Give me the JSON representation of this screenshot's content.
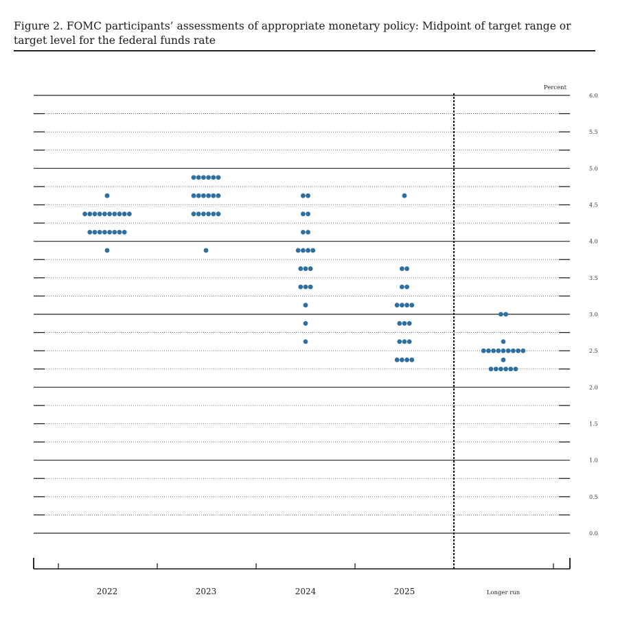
{
  "figure": {
    "title": "Figure 2.  FOMC participants’ assessments of appropriate monetary policy:  Midpoint of target range or target level for the federal funds rate"
  },
  "chart_data": {
    "type": "scatter",
    "title": "Figure 2.  FOMC participants’ assessments of appropriate monetary policy:  Midpoint of target range or target level for the federal funds rate",
    "ylabel": "Percent",
    "ylim": [
      0,
      6
    ],
    "yticks": [
      "0.0",
      "0.5",
      "1.0",
      "1.5",
      "2.0",
      "2.5",
      "3.0",
      "3.5",
      "4.0",
      "4.5",
      "5.0",
      "5.5",
      "6.0"
    ],
    "categories": [
      "2022",
      "2023",
      "2024",
      "2025",
      "Longer run"
    ],
    "dot_color": "#2e6fa0",
    "dots": [
      {
        "category": "2022",
        "y": 4.625,
        "count": 1
      },
      {
        "category": "2022",
        "y": 4.375,
        "count": 10
      },
      {
        "category": "2022",
        "y": 4.125,
        "count": 8
      },
      {
        "category": "2022",
        "y": 3.875,
        "count": 1
      },
      {
        "category": "2023",
        "y": 4.875,
        "count": 6
      },
      {
        "category": "2023",
        "y": 4.625,
        "count": 6
      },
      {
        "category": "2023",
        "y": 4.375,
        "count": 6
      },
      {
        "category": "2023",
        "y": 3.875,
        "count": 1
      },
      {
        "category": "2024",
        "y": 4.625,
        "count": 2
      },
      {
        "category": "2024",
        "y": 4.375,
        "count": 2
      },
      {
        "category": "2024",
        "y": 4.125,
        "count": 2
      },
      {
        "category": "2024",
        "y": 3.875,
        "count": 4
      },
      {
        "category": "2024",
        "y": 3.625,
        "count": 3
      },
      {
        "category": "2024",
        "y": 3.375,
        "count": 3
      },
      {
        "category": "2024",
        "y": 3.125,
        "count": 1
      },
      {
        "category": "2024",
        "y": 2.875,
        "count": 1
      },
      {
        "category": "2024",
        "y": 2.625,
        "count": 1
      },
      {
        "category": "2025",
        "y": 4.625,
        "count": 1
      },
      {
        "category": "2025",
        "y": 3.625,
        "count": 2
      },
      {
        "category": "2025",
        "y": 3.375,
        "count": 2
      },
      {
        "category": "2025",
        "y": 3.125,
        "count": 4
      },
      {
        "category": "2025",
        "y": 2.875,
        "count": 3
      },
      {
        "category": "2025",
        "y": 2.625,
        "count": 3
      },
      {
        "category": "2025",
        "y": 2.375,
        "count": 4
      },
      {
        "category": "Longer run",
        "y": 3.0,
        "count": 2
      },
      {
        "category": "Longer run",
        "y": 2.625,
        "count": 1
      },
      {
        "category": "Longer run",
        "y": 2.5,
        "count": 9
      },
      {
        "category": "Longer run",
        "y": 2.375,
        "count": 1
      },
      {
        "category": "Longer run",
        "y": 2.25,
        "count": 6
      }
    ]
  }
}
